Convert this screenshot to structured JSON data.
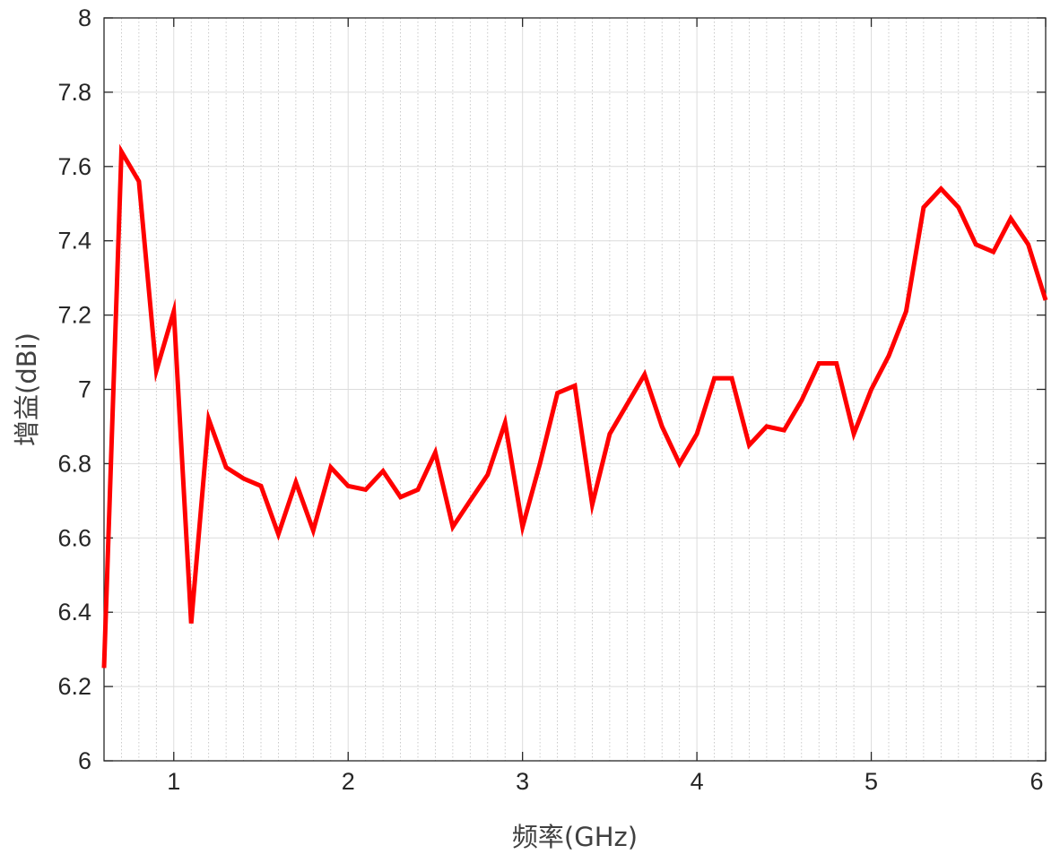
{
  "chart_data": {
    "type": "line",
    "xlabel": "频率(GHz)",
    "ylabel": "增益(dBi)",
    "xlim": [
      0.6,
      6
    ],
    "ylim": [
      6,
      8
    ],
    "x_ticks": [
      1,
      2,
      3,
      4,
      5,
      6
    ],
    "x_tick_labels": [
      "1",
      "2",
      "3",
      "4",
      "5",
      "6"
    ],
    "y_ticks": [
      6,
      6.2,
      6.4,
      6.6,
      6.8,
      7,
      7.2,
      7.4,
      7.6,
      7.8,
      8
    ],
    "y_tick_labels": [
      "6",
      "6.2",
      "6.4",
      "6.6",
      "6.8",
      "7",
      "7.2",
      "7.4",
      "7.6",
      "7.8",
      "8"
    ],
    "x_minor_step": 0.1,
    "grid": true,
    "minor_grid": true,
    "series": [
      {
        "color": "#ff0000",
        "x": [
          0.6,
          0.7,
          0.8,
          0.9,
          1.0,
          1.1,
          1.2,
          1.3,
          1.4,
          1.5,
          1.6,
          1.7,
          1.8,
          1.9,
          2.0,
          2.1,
          2.2,
          2.3,
          2.4,
          2.5,
          2.6,
          2.7,
          2.8,
          2.9,
          3.0,
          3.1,
          3.2,
          3.3,
          3.4,
          3.5,
          3.6,
          3.7,
          3.8,
          3.9,
          4.0,
          4.1,
          4.2,
          4.3,
          4.4,
          4.5,
          4.6,
          4.7,
          4.8,
          4.9,
          5.0,
          5.1,
          5.2,
          5.3,
          5.4,
          5.5,
          5.6,
          5.7,
          5.8,
          5.9,
          6.0
        ],
        "y": [
          6.25,
          7.64,
          7.56,
          7.05,
          7.21,
          6.37,
          6.92,
          6.79,
          6.76,
          6.74,
          6.61,
          6.75,
          6.62,
          6.79,
          6.74,
          6.73,
          6.78,
          6.71,
          6.73,
          6.83,
          6.63,
          6.7,
          6.77,
          6.91,
          6.63,
          6.8,
          6.99,
          7.01,
          6.69,
          6.88,
          6.96,
          7.04,
          6.9,
          6.8,
          6.88,
          7.03,
          7.03,
          6.85,
          6.9,
          6.89,
          6.97,
          7.07,
          7.07,
          6.88,
          7.0,
          7.09,
          7.21,
          7.49,
          7.54,
          7.49,
          7.39,
          7.37,
          7.46,
          7.39,
          7.24
        ]
      }
    ]
  }
}
